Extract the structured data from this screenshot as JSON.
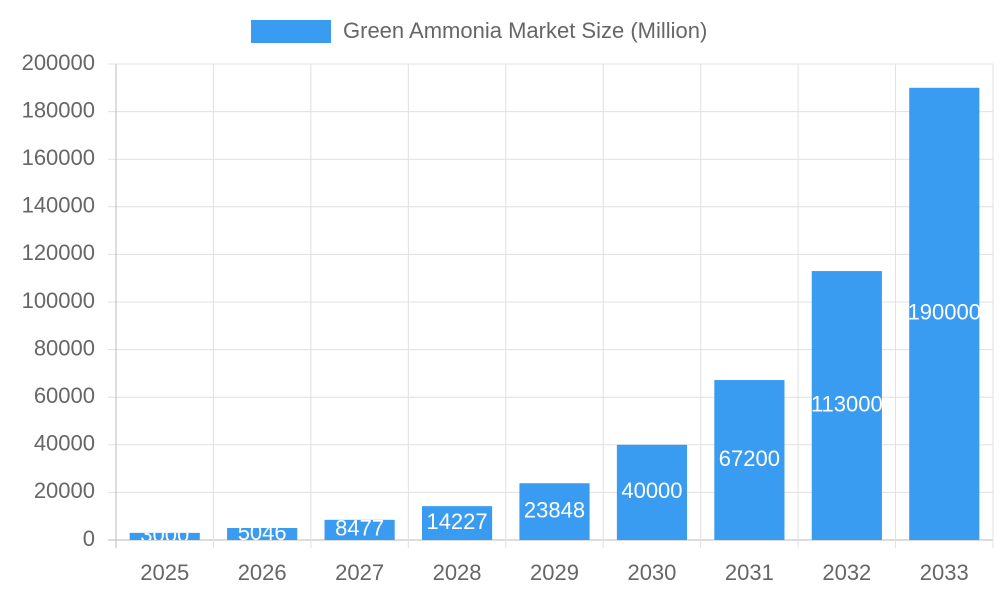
{
  "chart_data": {
    "type": "bar",
    "categories": [
      "2025",
      "2026",
      "2027",
      "2028",
      "2029",
      "2030",
      "2031",
      "2032",
      "2033"
    ],
    "series": [
      {
        "name": "Green Ammonia Market Size (Million)",
        "color": "#3a9cf0",
        "values": [
          3000,
          5046,
          8477,
          14227,
          23848,
          40000,
          67200,
          113000,
          190000
        ]
      }
    ],
    "ylim": [
      0,
      200000
    ],
    "yticks": [
      0,
      20000,
      40000,
      60000,
      80000,
      100000,
      120000,
      140000,
      160000,
      180000,
      200000
    ],
    "grid": true,
    "legend": "top",
    "data_labels": true
  }
}
